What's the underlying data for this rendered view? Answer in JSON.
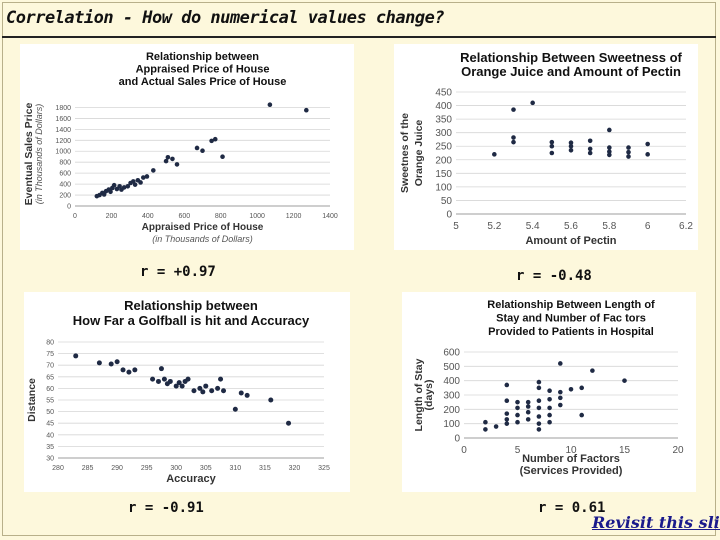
{
  "slide": {
    "title": "Correlation - How do numerical values change?",
    "link": "Revisit this slide",
    "accent": "#1a1a8c"
  },
  "chart_data": [
    {
      "type": "scatter",
      "title": [
        "Relationship between",
        "Appraised Price of House",
        "and Actual Sales Price of House"
      ],
      "xlabel": "Appraised Price of House",
      "xlabel_sub": "(in Thousands of Dollars)",
      "ylabel": "Eventual Sales Price",
      "ylabel_sub": "(in Thousands of Dollars)",
      "xlim": [
        0,
        1400
      ],
      "ylim": [
        0,
        1900
      ],
      "xticks": [
        0,
        200,
        400,
        600,
        800,
        1000,
        1200,
        1400
      ],
      "yticks": [
        0,
        200,
        400,
        600,
        800,
        1000,
        1200,
        1400,
        1600,
        1800
      ],
      "r": "r = +0.97",
      "points": [
        [
          120,
          180
        ],
        [
          135,
          200
        ],
        [
          150,
          240
        ],
        [
          160,
          210
        ],
        [
          170,
          270
        ],
        [
          185,
          300
        ],
        [
          195,
          260
        ],
        [
          205,
          330
        ],
        [
          215,
          380
        ],
        [
          230,
          310
        ],
        [
          245,
          360
        ],
        [
          255,
          300
        ],
        [
          270,
          340
        ],
        [
          290,
          360
        ],
        [
          305,
          420
        ],
        [
          320,
          450
        ],
        [
          330,
          390
        ],
        [
          345,
          470
        ],
        [
          360,
          430
        ],
        [
          375,
          520
        ],
        [
          395,
          540
        ],
        [
          430,
          650
        ],
        [
          500,
          820
        ],
        [
          510,
          890
        ],
        [
          535,
          860
        ],
        [
          560,
          760
        ],
        [
          670,
          1060
        ],
        [
          700,
          1010
        ],
        [
          750,
          1190
        ],
        [
          770,
          1220
        ],
        [
          810,
          900
        ],
        [
          1070,
          1850
        ],
        [
          1270,
          1750
        ]
      ]
    },
    {
      "type": "scatter",
      "title": [
        "Relationship Between Sweetness of",
        "Orange Juice and Amount of Pectin"
      ],
      "xlabel": "Amount of Pectin",
      "ylabel": [
        "Sweetnes of the",
        "Orange Juice"
      ],
      "xlim": [
        5,
        6.2
      ],
      "ylim": [
        0,
        450
      ],
      "xticks": [
        5,
        5.2,
        5.4,
        5.6,
        5.8,
        6,
        6.2
      ],
      "yticks": [
        0,
        50,
        100,
        150,
        200,
        250,
        300,
        350,
        400,
        450
      ],
      "r": "r = -0.48",
      "points": [
        [
          5.2,
          220
        ],
        [
          5.3,
          385
        ],
        [
          5.3,
          282
        ],
        [
          5.3,
          265
        ],
        [
          5.4,
          410
        ],
        [
          5.5,
          265
        ],
        [
          5.5,
          250
        ],
        [
          5.5,
          225
        ],
        [
          5.6,
          263
        ],
        [
          5.6,
          250
        ],
        [
          5.6,
          235
        ],
        [
          5.7,
          270
        ],
        [
          5.7,
          240
        ],
        [
          5.7,
          225
        ],
        [
          5.8,
          310
        ],
        [
          5.8,
          245
        ],
        [
          5.8,
          230
        ],
        [
          5.8,
          218
        ],
        [
          5.9,
          245
        ],
        [
          5.9,
          228
        ],
        [
          5.9,
          212
        ],
        [
          6.0,
          258
        ],
        [
          6.0,
          220
        ]
      ]
    },
    {
      "type": "scatter",
      "title": [
        "Relationship between",
        "How Far a Golfball is hit and Accuracy"
      ],
      "xlabel": "Accuracy",
      "ylabel": "Distance",
      "xlim": [
        280,
        325
      ],
      "ylim": [
        30,
        80
      ],
      "xticks": [
        280,
        285,
        290,
        295,
        300,
        305,
        310,
        315,
        320,
        325
      ],
      "xtick_labels": [
        "280",
        "285",
        "290",
        "295",
        "300",
        "305",
        "310",
        "315",
        "320",
        "325"
      ],
      "yticks": [
        30,
        35,
        40,
        45,
        50,
        55,
        60,
        65,
        70,
        75,
        80
      ],
      "r": "r = -0.91",
      "points": [
        [
          283,
          74
        ],
        [
          287,
          71
        ],
        [
          289,
          70.5
        ],
        [
          290,
          71.5
        ],
        [
          291,
          68
        ],
        [
          292,
          67
        ],
        [
          293,
          68
        ],
        [
          296,
          64
        ],
        [
          297,
          63
        ],
        [
          297.5,
          68.5
        ],
        [
          298,
          64
        ],
        [
          298.5,
          62
        ],
        [
          299,
          63
        ],
        [
          300,
          61
        ],
        [
          300.5,
          62.5
        ],
        [
          301,
          61
        ],
        [
          301.5,
          63
        ],
        [
          302,
          64
        ],
        [
          303,
          59
        ],
        [
          304,
          60
        ],
        [
          304.5,
          58.5
        ],
        [
          305,
          61
        ],
        [
          306,
          59
        ],
        [
          307,
          60
        ],
        [
          307.5,
          64
        ],
        [
          308,
          59
        ],
        [
          310,
          51
        ],
        [
          311,
          58
        ],
        [
          312,
          57
        ],
        [
          316,
          55
        ],
        [
          319,
          45
        ]
      ]
    },
    {
      "type": "scatter",
      "title": [
        "Relationship Between Length of",
        "Stay and Number of Fac tors",
        "Provided to Patients in Hospital"
      ],
      "xlabel": [
        "Number of Factors",
        "(Services Provided)"
      ],
      "ylabel": [
        "Length of Stay",
        "(days)"
      ],
      "xlim": [
        0,
        20
      ],
      "ylim": [
        0,
        600
      ],
      "xticks": [
        0,
        5,
        10,
        15,
        20
      ],
      "yticks": [
        0,
        100,
        200,
        300,
        400,
        500,
        600
      ],
      "r": "r = 0.61",
      "points": [
        [
          2,
          110
        ],
        [
          2,
          60
        ],
        [
          3,
          80
        ],
        [
          4,
          370
        ],
        [
          4,
          260
        ],
        [
          4,
          170
        ],
        [
          4,
          130
        ],
        [
          4,
          100
        ],
        [
          5,
          250
        ],
        [
          5,
          210
        ],
        [
          5,
          160
        ],
        [
          5,
          110
        ],
        [
          6,
          250
        ],
        [
          6,
          220
        ],
        [
          6,
          180
        ],
        [
          6,
          130
        ],
        [
          7,
          390
        ],
        [
          7,
          350
        ],
        [
          7,
          260
        ],
        [
          7,
          210
        ],
        [
          7,
          150
        ],
        [
          7,
          100
        ],
        [
          7,
          60
        ],
        [
          8,
          330
        ],
        [
          8,
          270
        ],
        [
          8,
          210
        ],
        [
          8,
          160
        ],
        [
          8,
          110
        ],
        [
          9,
          520
        ],
        [
          9,
          320
        ],
        [
          9,
          280
        ],
        [
          9,
          230
        ],
        [
          10,
          340
        ],
        [
          11,
          350
        ],
        [
          11,
          160
        ],
        [
          12,
          470
        ],
        [
          15,
          400
        ]
      ]
    }
  ]
}
